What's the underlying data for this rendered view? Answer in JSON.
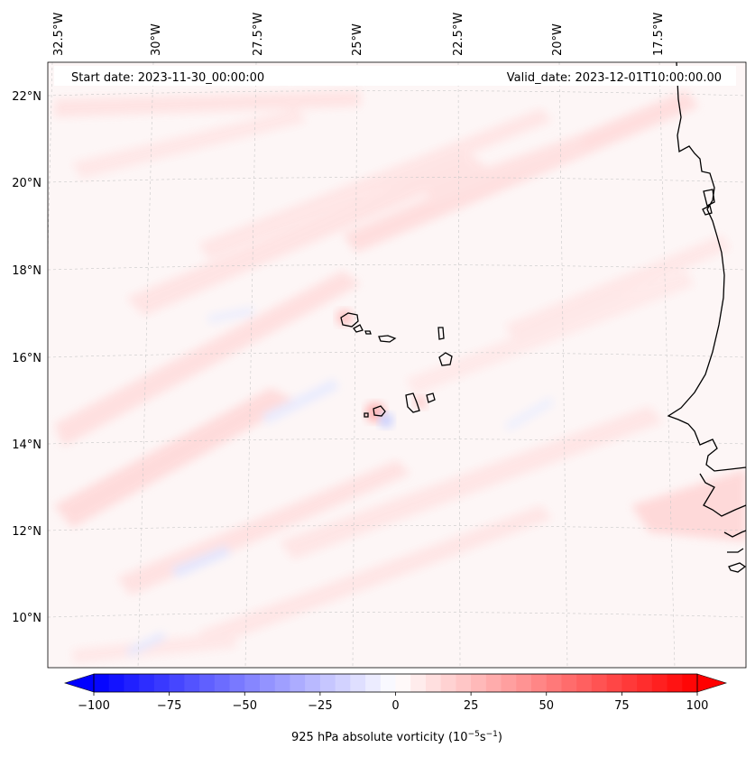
{
  "map": {
    "start_label": "Start date: 2023-11-30_00:00:00",
    "valid_label": "Valid_date: 2023-12-01T10:00:00.00",
    "lon_ticks": [
      "32.5°W",
      "30°W",
      "27.5°W",
      "25°W",
      "22.5°W",
      "20°W",
      "17.5°W"
    ],
    "lat_ticks": [
      "22°N",
      "20°N",
      "18°N",
      "16°N",
      "14°N",
      "12°N",
      "10°N"
    ],
    "background_color": "#fdf6f6",
    "coast_color": "#000000",
    "grid_color": "#c8c8c8"
  },
  "colorbar": {
    "label_prefix": "925 hPa absolute vorticity (10",
    "label_exp1": "−5",
    "label_mid": "s",
    "label_exp2": "−1",
    "label_suffix": ")",
    "tick_labels": [
      "−100",
      "−75",
      "−50",
      "−25",
      "0",
      "25",
      "50",
      "75",
      "100"
    ],
    "vmin": -100,
    "vmax": 100,
    "step": 5,
    "color_min": "#0000ff",
    "color_mid": "#ffffff",
    "color_max": "#ff0000"
  }
}
